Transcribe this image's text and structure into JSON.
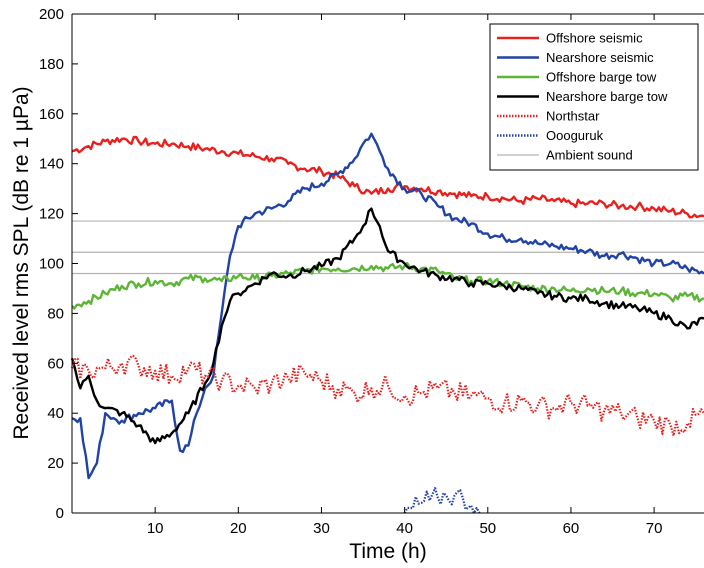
{
  "chart_data": {
    "type": "line",
    "title": "",
    "xlabel": "Time (h)",
    "ylabel": "Received level rms SPL (dB re 1 µPa)",
    "xlim": [
      0,
      76
    ],
    "ylim": [
      0,
      200
    ],
    "xticks": [
      10,
      20,
      30,
      40,
      50,
      60,
      70
    ],
    "yticks": [
      0,
      20,
      40,
      60,
      80,
      100,
      120,
      140,
      160,
      180,
      200
    ],
    "grid": false,
    "legend_position": "top-right",
    "ambient_levels": [
      96,
      104.5,
      117
    ],
    "series": [
      {
        "name": "Offshore seismic",
        "color": "#e8201e",
        "style": "solid",
        "x": [
          0,
          2,
          4,
          6,
          8,
          10,
          12,
          14,
          16,
          18,
          20,
          22,
          24,
          26,
          28,
          30,
          32,
          34,
          36,
          38,
          40,
          42,
          44,
          46,
          48,
          50,
          52,
          54,
          56,
          58,
          60,
          62,
          64,
          66,
          68,
          70,
          72,
          74,
          76
        ],
        "y": [
          145,
          147,
          149,
          150,
          149,
          148,
          148,
          147,
          146,
          145,
          144,
          143,
          142,
          140,
          138,
          137,
          135,
          131,
          128,
          130,
          131,
          130,
          129,
          128,
          127,
          127,
          126,
          125,
          126,
          125,
          124,
          124,
          124,
          123,
          123,
          122,
          121,
          120,
          119
        ]
      },
      {
        "name": "Nearshore seismic",
        "color": "#2143a8",
        "style": "solid",
        "x": [
          0,
          1,
          2,
          3,
          4,
          5,
          6,
          8,
          10,
          12,
          13,
          14,
          15,
          16,
          17,
          18,
          19,
          20,
          22,
          24,
          26,
          28,
          30,
          32,
          34,
          35,
          36,
          37,
          38,
          40,
          42,
          44,
          46,
          48,
          50,
          52,
          54,
          56,
          58,
          60,
          62,
          64,
          66,
          68,
          70,
          72,
          74,
          76
        ],
        "y": [
          38,
          38,
          14,
          20,
          40,
          38,
          37,
          40,
          42,
          45,
          25,
          27,
          40,
          50,
          55,
          80,
          103,
          115,
          120,
          122,
          125,
          130,
          132,
          136,
          142,
          148,
          152,
          145,
          138,
          130,
          128,
          123,
          118,
          116,
          112,
          110,
          110,
          108,
          107,
          106,
          105,
          103,
          104,
          102,
          100,
          100,
          98,
          96
        ]
      },
      {
        "name": "Offshore barge tow",
        "color": "#5cb537",
        "style": "solid",
        "x": [
          0,
          2,
          4,
          6,
          8,
          10,
          12,
          14,
          16,
          18,
          20,
          22,
          24,
          26,
          28,
          30,
          32,
          34,
          36,
          38,
          40,
          42,
          44,
          46,
          48,
          50,
          52,
          54,
          56,
          58,
          60,
          62,
          64,
          66,
          68,
          70,
          72,
          74,
          76
        ],
        "y": [
          83,
          85,
          88,
          91,
          92,
          93,
          92,
          94,
          94,
          93,
          95,
          94,
          95,
          96,
          97,
          98,
          98,
          98,
          99,
          98,
          99,
          98,
          97,
          94,
          93,
          93,
          92,
          91,
          90,
          90,
          89,
          90,
          89,
          89,
          88,
          88,
          86,
          87,
          86
        ]
      },
      {
        "name": "Nearshore barge tow",
        "color": "#000000",
        "style": "solid",
        "x": [
          0,
          1,
          2,
          3,
          4,
          6,
          8,
          10,
          12,
          14,
          16,
          17,
          18,
          19,
          20,
          22,
          24,
          26,
          28,
          30,
          32,
          34,
          35,
          36,
          37,
          38,
          40,
          42,
          44,
          46,
          48,
          50,
          52,
          54,
          56,
          58,
          60,
          62,
          64,
          66,
          68,
          70,
          72,
          74,
          76
        ],
        "y": [
          62,
          50,
          55,
          45,
          42,
          40,
          35,
          28,
          32,
          40,
          52,
          60,
          75,
          85,
          88,
          92,
          96,
          95,
          97,
          99,
          102,
          110,
          115,
          122,
          115,
          105,
          100,
          97,
          95,
          94,
          92,
          92,
          91,
          90,
          88,
          87,
          86,
          86,
          84,
          83,
          82,
          80,
          78,
          74,
          78
        ]
      },
      {
        "name": "Northstar",
        "color": "#e8201e",
        "style": "dotted",
        "x": [
          0,
          2,
          4,
          6,
          8,
          10,
          12,
          14,
          16,
          18,
          20,
          22,
          24,
          26,
          28,
          30,
          32,
          34,
          36,
          38,
          40,
          42,
          44,
          46,
          48,
          50,
          52,
          54,
          56,
          58,
          60,
          62,
          64,
          66,
          68,
          70,
          72,
          74,
          76
        ],
        "y": [
          58,
          57,
          58,
          60,
          59,
          57,
          55,
          58,
          55,
          53,
          51,
          50,
          52,
          54,
          56,
          53,
          50,
          48,
          50,
          51,
          47,
          48,
          50,
          48,
          47,
          46,
          44,
          45,
          43,
          42,
          44,
          43,
          41,
          40,
          38,
          37,
          35,
          36,
          40
        ]
      },
      {
        "name": "Oooguruk",
        "color": "#2143a8",
        "style": "dotted",
        "x": [
          40,
          41,
          42,
          43,
          44,
          45,
          46,
          47,
          48,
          49
        ],
        "y": [
          0,
          2,
          4,
          5,
          6,
          7,
          7,
          6,
          3,
          0
        ]
      },
      {
        "name": "Ambient sound",
        "color": "#b3b3b3",
        "style": "solid"
      }
    ]
  }
}
